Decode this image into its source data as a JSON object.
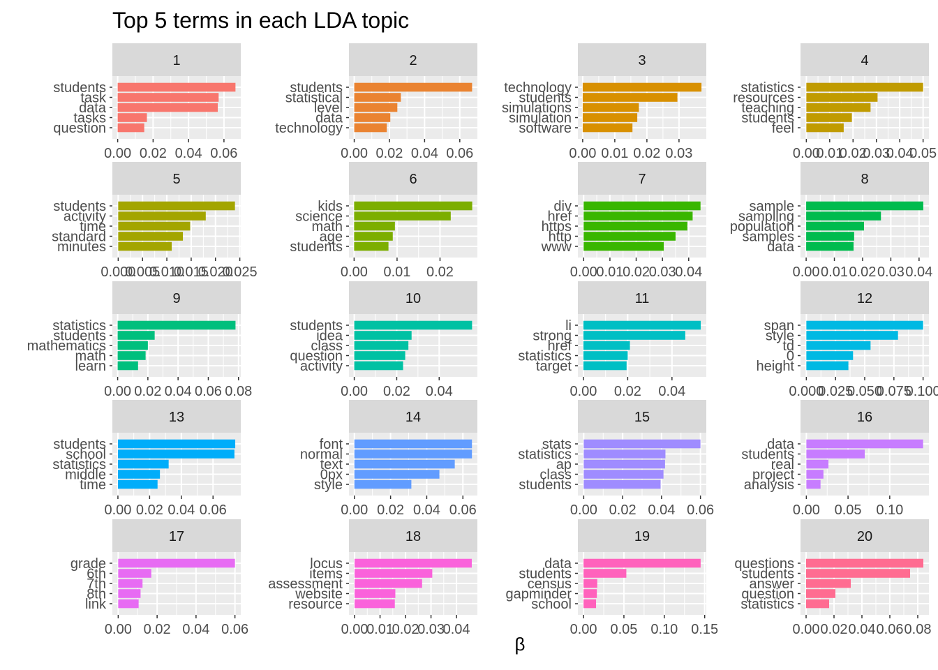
{
  "chart_data": {
    "type": "bar",
    "title": "Top 5 terms in each LDA topic",
    "xlabel": "β",
    "ylabel": "",
    "panels": [
      {
        "label": "1",
        "color": "#F8766D",
        "terms": [
          "students",
          "task",
          "data",
          "tasks",
          "question"
        ],
        "values": [
          0.0665,
          0.057,
          0.0565,
          0.0165,
          0.015
        ],
        "xlim": [
          -0.003,
          0.0695
        ],
        "ticks": [
          0.0,
          0.02,
          0.04,
          0.06
        ],
        "tick_labels": [
          "0.00",
          "0.02",
          "0.04",
          "0.06"
        ]
      },
      {
        "label": "2",
        "color": "#EA8331",
        "terms": [
          "students",
          "statistical",
          "level",
          "data",
          "technology"
        ],
        "values": [
          0.067,
          0.0265,
          0.0245,
          0.0205,
          0.0185
        ],
        "xlim": [
          -0.003,
          0.07
        ],
        "ticks": [
          0.0,
          0.02,
          0.04,
          0.06
        ],
        "tick_labels": [
          "0.00",
          "0.02",
          "0.04",
          "0.06"
        ]
      },
      {
        "label": "3",
        "color": "#D89000",
        "terms": [
          "technology",
          "students",
          "simulations",
          "simulation",
          "software"
        ],
        "values": [
          0.037,
          0.0295,
          0.0175,
          0.017,
          0.0155
        ],
        "xlim": [
          -0.0015,
          0.0385
        ],
        "ticks": [
          0.0,
          0.01,
          0.02,
          0.03
        ],
        "tick_labels": [
          "0.00",
          "0.01",
          "0.02",
          "0.03"
        ]
      },
      {
        "label": "4",
        "color": "#C09B00",
        "terms": [
          "statistics",
          "resources",
          "teaching",
          "students",
          "feel"
        ],
        "values": [
          0.05,
          0.0305,
          0.0275,
          0.0195,
          0.016
        ],
        "xlim": [
          -0.0025,
          0.0525
        ],
        "ticks": [
          0.0,
          0.01,
          0.02,
          0.03,
          0.04,
          0.05
        ],
        "tick_labels": [
          "0.00",
          "0.01",
          "0.02",
          "0.03",
          "0.04",
          "0.05"
        ]
      },
      {
        "label": "5",
        "color": "#A3A500",
        "terms": [
          "students",
          "activity",
          "time",
          "standard",
          "minutes"
        ],
        "values": [
          0.024,
          0.018,
          0.0148,
          0.0133,
          0.011
        ],
        "xlim": [
          -0.0012,
          0.0252
        ],
        "ticks": [
          0.0,
          0.005,
          0.01,
          0.015,
          0.02,
          0.025
        ],
        "tick_labels": [
          "0.000",
          "0.005",
          "0.010",
          "0.015",
          "0.020",
          "0.025"
        ]
      },
      {
        "label": "6",
        "color": "#7CAE00",
        "terms": [
          "kids",
          "science",
          "math",
          "age",
          "students"
        ],
        "values": [
          0.0275,
          0.0225,
          0.0095,
          0.009,
          0.008
        ],
        "xlim": [
          -0.0012,
          0.0287
        ],
        "ticks": [
          0.0,
          0.01,
          0.02
        ],
        "tick_labels": [
          "0.00",
          "0.01",
          "0.02"
        ]
      },
      {
        "label": "7",
        "color": "#39B600",
        "terms": [
          "div",
          "href",
          "https",
          "http",
          "www"
        ],
        "values": [
          0.0445,
          0.0415,
          0.0395,
          0.035,
          0.0305
        ],
        "xlim": [
          -0.0022,
          0.0467
        ],
        "ticks": [
          0.0,
          0.01,
          0.02,
          0.03,
          0.04
        ],
        "tick_labels": [
          "0.00",
          "0.01",
          "0.02",
          "0.03",
          "0.04"
        ]
      },
      {
        "label": "8",
        "color": "#00BB4E",
        "terms": [
          "sample",
          "sampling",
          "population",
          "samples",
          "data"
        ],
        "values": [
          0.0415,
          0.0265,
          0.0205,
          0.017,
          0.0168
        ],
        "xlim": [
          -0.002,
          0.0435
        ],
        "ticks": [
          0.0,
          0.01,
          0.02,
          0.03,
          0.04
        ],
        "tick_labels": [
          "0.00",
          "0.01",
          "0.02",
          "0.03",
          "0.04"
        ]
      },
      {
        "label": "9",
        "color": "#00BF7D",
        "terms": [
          "statistics",
          "students",
          "mathematics",
          "math",
          "learn"
        ],
        "values": [
          0.078,
          0.0245,
          0.02,
          0.0185,
          0.0135
        ],
        "xlim": [
          -0.0035,
          0.0815
        ],
        "ticks": [
          0.0,
          0.02,
          0.04,
          0.06,
          0.08
        ],
        "tick_labels": [
          "0.00",
          "0.02",
          "0.04",
          "0.06",
          "0.08"
        ]
      },
      {
        "label": "10",
        "color": "#00C1A3",
        "terms": [
          "students",
          "idea",
          "class",
          "question",
          "activity"
        ],
        "values": [
          0.0555,
          0.027,
          0.0255,
          0.024,
          0.023
        ],
        "xlim": [
          -0.0025,
          0.058
        ],
        "ticks": [
          0.0,
          0.02,
          0.04
        ],
        "tick_labels": [
          "0.00",
          "0.02",
          "0.04"
        ]
      },
      {
        "label": "11",
        "color": "#00BFC4",
        "terms": [
          "li",
          "strong",
          "href",
          "statistics",
          "target"
        ],
        "values": [
          0.053,
          0.046,
          0.021,
          0.02,
          0.0195
        ],
        "xlim": [
          -0.0025,
          0.0555
        ],
        "ticks": [
          0.0,
          0.02,
          0.04
        ],
        "tick_labels": [
          "0.00",
          "0.02",
          "0.04"
        ]
      },
      {
        "label": "12",
        "color": "#00B9E3",
        "terms": [
          "span",
          "style",
          "td",
          "0",
          "height"
        ],
        "values": [
          0.1,
          0.0785,
          0.055,
          0.04,
          0.036
        ],
        "xlim": [
          -0.005,
          0.105
        ],
        "ticks": [
          0.0,
          0.025,
          0.05,
          0.075,
          0.1
        ],
        "tick_labels": [
          "0.000",
          "0.025",
          "0.050",
          "0.075",
          "0.100"
        ]
      },
      {
        "label": "13",
        "color": "#00ADFA",
        "terms": [
          "students",
          "school",
          "statistics",
          "middle",
          "time"
        ],
        "values": [
          0.074,
          0.0735,
          0.032,
          0.0265,
          0.025
        ],
        "xlim": [
          -0.0035,
          0.0775
        ],
        "ticks": [
          0.0,
          0.02,
          0.04,
          0.06
        ],
        "tick_labels": [
          "0.00",
          "0.02",
          "0.04",
          "0.06"
        ]
      },
      {
        "label": "14",
        "color": "#619CFF",
        "terms": [
          "font",
          "normal",
          "text",
          "0px",
          "style"
        ],
        "values": [
          0.065,
          0.065,
          0.0555,
          0.047,
          0.0315
        ],
        "xlim": [
          -0.003,
          0.068
        ],
        "ticks": [
          0.0,
          0.02,
          0.04,
          0.06
        ],
        "tick_labels": [
          "0.00",
          "0.02",
          "0.04",
          "0.06"
        ]
      },
      {
        "label": "15",
        "color": "#9F8CFF",
        "terms": [
          "stats",
          "statistics",
          "ap",
          "class",
          "students"
        ],
        "values": [
          0.06,
          0.042,
          0.0418,
          0.041,
          0.0395
        ],
        "xlim": [
          -0.003,
          0.063
        ],
        "ticks": [
          0.0,
          0.02,
          0.04,
          0.06
        ],
        "tick_labels": [
          "0.00",
          "0.02",
          "0.04",
          "0.06"
        ]
      },
      {
        "label": "16",
        "color": "#C77CFF",
        "terms": [
          "data",
          "students",
          "real",
          "project",
          "analysis"
        ],
        "values": [
          0.14,
          0.07,
          0.0265,
          0.0205,
          0.017
        ],
        "xlim": [
          -0.007,
          0.147
        ],
        "ticks": [
          0.0,
          0.05,
          0.1
        ],
        "tick_labels": [
          "0.00",
          "0.05",
          "0.10"
        ]
      },
      {
        "label": "17",
        "color": "#E76BF3",
        "terms": [
          "grade",
          "6th",
          "7th",
          "8th",
          "link"
        ],
        "values": [
          0.06,
          0.017,
          0.0125,
          0.0115,
          0.0105
        ],
        "xlim": [
          -0.003,
          0.063
        ],
        "ticks": [
          0.0,
          0.02,
          0.04,
          0.06
        ],
        "tick_labels": [
          "0.00",
          "0.02",
          "0.04",
          "0.06"
        ]
      },
      {
        "label": "18",
        "color": "#FA62DB",
        "terms": [
          "locus",
          "items",
          "assessment",
          "website",
          "resource"
        ],
        "values": [
          0.046,
          0.0305,
          0.0265,
          0.016,
          0.0158
        ],
        "xlim": [
          -0.0022,
          0.0482
        ],
        "ticks": [
          0.0,
          0.01,
          0.02,
          0.03,
          0.04
        ],
        "tick_labels": [
          "0.00",
          "0.01",
          "0.02",
          "0.03",
          "0.04"
        ]
      },
      {
        "label": "19",
        "color": "#FF62BC",
        "terms": [
          "data",
          "students",
          "census",
          "gapminder",
          "school"
        ],
        "values": [
          0.145,
          0.053,
          0.017,
          0.0165,
          0.0155
        ],
        "xlim": [
          -0.007,
          0.152
        ],
        "ticks": [
          0.0,
          0.05,
          0.1,
          0.15
        ],
        "tick_labels": [
          "0.00",
          "0.05",
          "0.10",
          "0.15"
        ]
      },
      {
        "label": "20",
        "color": "#FF6C91",
        "terms": [
          "questions",
          "students",
          "answer",
          "question",
          "statistics"
        ],
        "values": [
          0.084,
          0.0745,
          0.032,
          0.021,
          0.0165
        ],
        "xlim": [
          -0.004,
          0.088
        ],
        "ticks": [
          0.0,
          0.02,
          0.04,
          0.06,
          0.08
        ],
        "tick_labels": [
          "0.00",
          "0.02",
          "0.04",
          "0.06",
          "0.08"
        ]
      }
    ]
  }
}
